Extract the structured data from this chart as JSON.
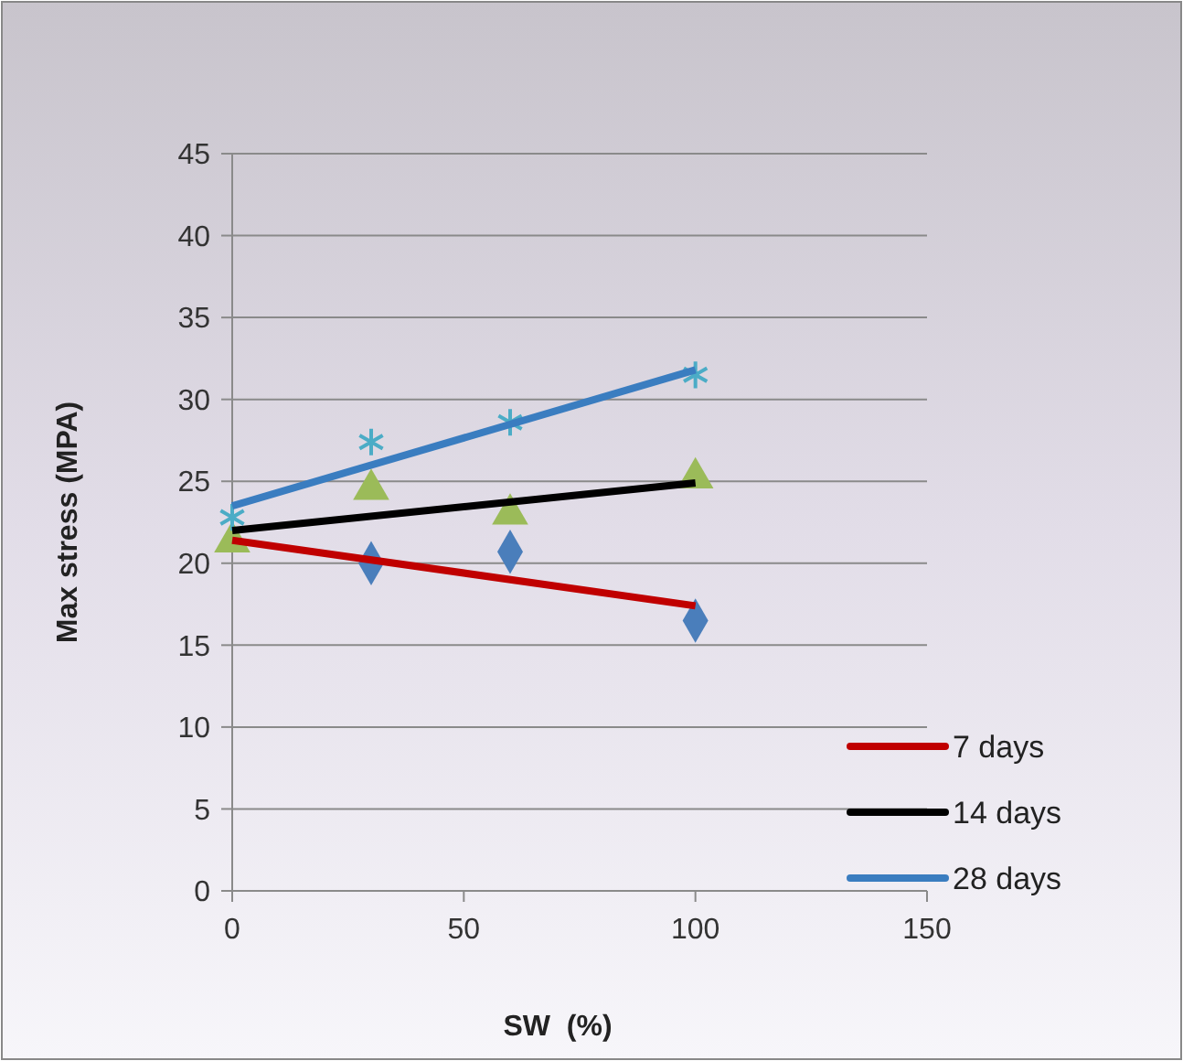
{
  "chart_data": {
    "type": "scatter",
    "xlabel": "SW  (%)",
    "ylabel": "Max stress (MPA)",
    "xlim": [
      0,
      150
    ],
    "xticks": [
      0,
      50,
      100,
      150
    ],
    "ylim": [
      0,
      45
    ],
    "yticks": [
      0,
      5,
      10,
      15,
      20,
      25,
      30,
      35,
      40,
      45
    ],
    "grid": "y",
    "legend": "right",
    "series": [
      {
        "x": [
          30,
          60,
          100
        ],
        "values": [
          20,
          20.7,
          16.5
        ],
        "color": "#4a7ebb",
        "marker": "diamond"
      },
      {
        "x": [
          0,
          30,
          60,
          100
        ],
        "values": [
          21.3,
          24.5,
          23,
          25.2
        ],
        "color": "#9bbb59",
        "marker": "triangle"
      },
      {
        "x": [
          0,
          30,
          60,
          100
        ],
        "values": [
          22.8,
          27.4,
          28.6,
          31.5
        ],
        "color": "#4bacc6",
        "marker": "cross"
      },
      {
        "type": "line",
        "name": "7 days",
        "x": [
          0,
          100
        ],
        "values": [
          21.4,
          17.4
        ],
        "color": "#c00000",
        "marker": "none"
      },
      {
        "type": "line",
        "name": "14 days",
        "x": [
          0,
          100
        ],
        "values": [
          22,
          24.9
        ],
        "color": "#000000",
        "marker": "none"
      },
      {
        "type": "line",
        "name": "28 days",
        "x": [
          0,
          100
        ],
        "values": [
          23.5,
          31.8
        ],
        "color": "#3a7dc0",
        "marker": "none"
      }
    ]
  }
}
